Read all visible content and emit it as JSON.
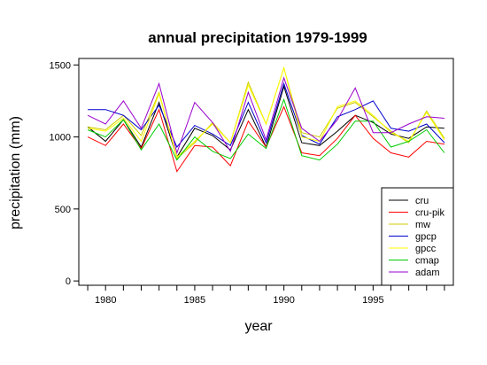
{
  "chart_data": {
    "type": "line",
    "title": "annual precipitation 1979-1999",
    "xlabel": "year",
    "ylabel": "precipitation (mm)",
    "xlim": [
      1978.5,
      1999.5
    ],
    "ylim": [
      -30,
      1545
    ],
    "x_ticks": [
      1980,
      1985,
      1990,
      1995
    ],
    "y_ticks": [
      0,
      500,
      1000,
      1500
    ],
    "grid": false,
    "legend_position": "bottom-right",
    "x": [
      1979,
      1980,
      1981,
      1982,
      1983,
      1984,
      1985,
      1986,
      1987,
      1988,
      1989,
      1990,
      1991,
      1992,
      1993,
      1994,
      1995,
      1996,
      1997,
      1998,
      1999
    ],
    "series": [
      {
        "name": "cru",
        "color": "#000000",
        "values": [
          1070,
          970,
          1120,
          930,
          1240,
          860,
          1060,
          1010,
          910,
          1190,
          930,
          1350,
          960,
          940,
          1040,
          1150,
          1100,
          1020,
          990,
          1070,
          1060
        ]
      },
      {
        "name": "cru-pik",
        "color": "#ff0000",
        "values": [
          1000,
          940,
          1090,
          920,
          1190,
          760,
          940,
          930,
          800,
          1110,
          930,
          1210,
          890,
          870,
          990,
          1150,
          990,
          890,
          860,
          970,
          950
        ]
      },
      {
        "name": "mw",
        "color": "#cccc00",
        "values": [
          1070,
          1050,
          1150,
          1010,
          1310,
          850,
          960,
          1100,
          960,
          1380,
          1090,
          1480,
          1030,
          1000,
          1200,
          1240,
          1140,
          1040,
          960,
          1180,
          990
        ]
      },
      {
        "name": "gpcp",
        "color": "#0000cc",
        "values": [
          1190,
          1190,
          1150,
          1050,
          1220,
          930,
          1080,
          1020,
          940,
          1240,
          960,
          1370,
          1010,
          950,
          1140,
          1190,
          1250,
          1060,
          1040,
          1090,
          960
        ]
      },
      {
        "name": "gpcc",
        "color": "#ffff00",
        "values": [
          1060,
          1040,
          1130,
          970,
          1300,
          860,
          970,
          1090,
          960,
          1360,
          1090,
          1480,
          1000,
          970,
          1210,
          1250,
          1150,
          1030,
          970,
          1170,
          980
        ]
      },
      {
        "name": "cmap",
        "color": "#00cc00",
        "values": [
          1050,
          1000,
          1120,
          910,
          1090,
          840,
          1000,
          900,
          850,
          1020,
          920,
          1260,
          870,
          840,
          950,
          1110,
          1110,
          930,
          970,
          1050,
          890
        ]
      },
      {
        "name": "adam",
        "color": "#9900cc",
        "values": [
          1150,
          1090,
          1250,
          1060,
          1370,
          890,
          1240,
          1100,
          900,
          1310,
          980,
          1410,
          1060,
          970,
          1120,
          1340,
          1030,
          1030,
          1090,
          1140,
          1130
        ]
      }
    ]
  }
}
